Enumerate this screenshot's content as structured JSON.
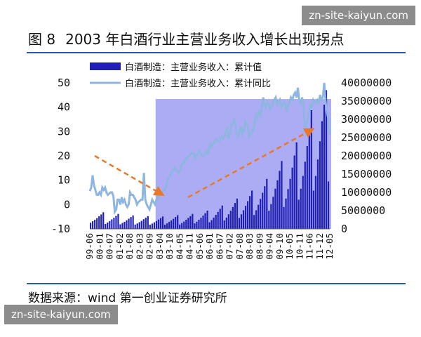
{
  "watermark": "zn-site-kaiyun.com",
  "figure": {
    "label": "图 8",
    "title": "2003 年白酒行业主营业务收入增长出现拐点",
    "source": "数据来源：wind 第一创业证券研究所"
  },
  "colors": {
    "bar": "#1f1fb4",
    "line": "#8fb6e0",
    "highlight": "#9e9ef2",
    "trend": "#e8792a",
    "rule": "#2a5aa6"
  },
  "chart_data": {
    "type": "bar+line",
    "series": [
      {
        "name": "白酒制造：主营业务收入：累计值",
        "type": "bar",
        "axis": "right",
        "values": [
          1700000,
          2100000,
          2500000,
          2950000,
          3450000,
          3950000,
          4550000,
          1350000,
          1750000,
          2150000,
          2600000,
          3050000,
          3550000,
          4100000,
          1250000,
          1600000,
          1950000,
          2350000,
          2800000,
          3250000,
          3700000,
          1200000,
          1500000,
          1850000,
          2200000,
          2650000,
          3050000,
          3500000,
          1150000,
          1450000,
          1800000,
          2150000,
          2550000,
          2950000,
          3400000,
          1150000,
          1500000,
          1900000,
          2300000,
          2750000,
          3250000,
          3750000,
          1200000,
          1600000,
          2000000,
          2500000,
          3000000,
          3500000,
          4100000,
          1500000,
          1950000,
          2500000,
          3050000,
          3650000,
          4300000,
          5000000,
          1800000,
          2400000,
          3100000,
          3850000,
          4650000,
          5500000,
          6400000,
          2300000,
          3100000,
          4000000,
          5000000,
          6000000,
          7100000,
          8300000,
          3000000,
          4000000,
          5100000,
          6300000,
          7600000,
          9000000,
          10500000,
          3800000,
          5100000,
          6600000,
          8200000,
          9900000,
          11700000,
          13700000,
          5000000,
          6800000,
          8800000,
          11000000,
          13300000,
          15900000,
          18600000,
          6000000,
          8300000,
          10900000,
          13700000,
          16800000,
          20100000,
          23700000,
          8000000,
          11000000,
          14500000,
          18400000,
          22700000,
          27500000,
          32500000,
          10500000,
          14500000,
          19000000,
          24000000,
          29500000,
          34000000,
          38000000,
          13000000
        ]
      },
      {
        "name": "白酒制造：主营业务收入：累计同比",
        "type": "line",
        "axis": "left",
        "values": [
          5.5,
          7,
          12,
          8,
          6,
          4,
          4,
          5,
          4,
          7,
          6,
          7,
          5,
          4,
          4.5,
          5,
          5,
          3.5,
          -3,
          -2,
          2,
          2,
          0,
          3,
          1,
          2,
          0,
          -1,
          0,
          5,
          4,
          4,
          3,
          2,
          0,
          1,
          1.5,
          2,
          2,
          13,
          2,
          0,
          -1,
          -2,
          0,
          2,
          1,
          0,
          2,
          2,
          4,
          4,
          5,
          6,
          6,
          7,
          10,
          11,
          12,
          13,
          14,
          15,
          14,
          14,
          13,
          14,
          16,
          17,
          17,
          19,
          19,
          20,
          20,
          21,
          21,
          21,
          19,
          20,
          21,
          22,
          21,
          20,
          20,
          21,
          22,
          21,
          23,
          25,
          24,
          25,
          26,
          27,
          26,
          26,
          27,
          28,
          27,
          28,
          30,
          31,
          27,
          29,
          33,
          33,
          35,
          33,
          29,
          28,
          30,
          32,
          29,
          30,
          34,
          33,
          32,
          28,
          29,
          30,
          31,
          34,
          37,
          36,
          38,
          37,
          40,
          44,
          41,
          40,
          42,
          41,
          39,
          40,
          42,
          43,
          44,
          41,
          42,
          43,
          40,
          41,
          42,
          41,
          38,
          41,
          42,
          44,
          43,
          45,
          46,
          44,
          48,
          43,
          41,
          44,
          42,
          30,
          33,
          35,
          38,
          41,
          40,
          43,
          42,
          42,
          43,
          42,
          45,
          43,
          44,
          50,
          42,
          38,
          35,
          29
        ]
      }
    ],
    "x_tick_labels": [
      "99-06",
      "00-01",
      "00-07",
      "01-02",
      "01-08",
      "02-03",
      "02-09",
      "03-04",
      "03-10",
      "04-05",
      "04-11",
      "05-06",
      "06-01",
      "06-07",
      "07-02",
      "07-08",
      "08-03",
      "08-09",
      "09-04",
      "09-10",
      "10-05",
      "10-11",
      "11-06",
      "11-12",
      "12-05"
    ],
    "y_left": {
      "ticks": [
        "50",
        "40",
        "30",
        "20",
        "10",
        "0",
        "-10"
      ],
      "range": [
        -10,
        50
      ]
    },
    "y_right": {
      "ticks": [
        "40000000",
        "35000000",
        "30000000",
        "25000000",
        "20000000",
        "15000000",
        "10000000",
        "5000000",
        "0"
      ],
      "range": [
        0,
        40000000
      ]
    },
    "legend": {
      "placement": "top-left"
    },
    "highlight_region": {
      "from": "03-04",
      "to": "12-05"
    }
  }
}
